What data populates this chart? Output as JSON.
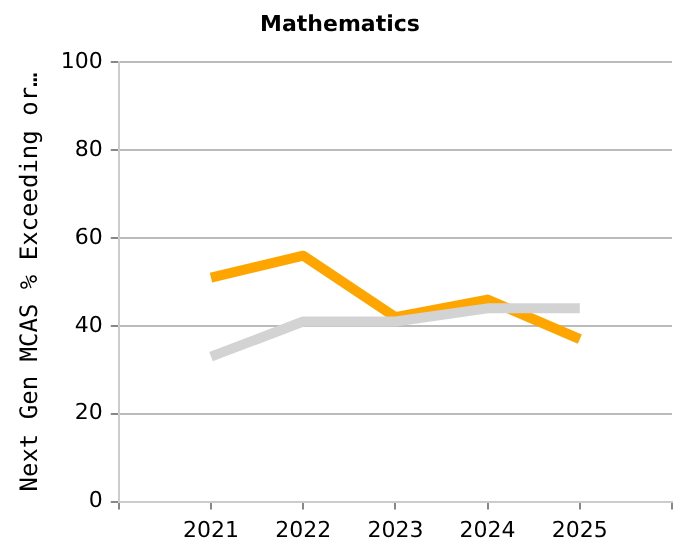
{
  "chart_data": {
    "type": "line",
    "title": "Mathematics",
    "ylabel": "Next Gen MCAS % Exceeding or…",
    "x": [
      2021,
      2022,
      2023,
      2024,
      2025
    ],
    "xlim": [
      2020,
      2026
    ],
    "xticks": [
      {
        "value": 2020,
        "label": null
      },
      2021,
      2022,
      2023,
      2024,
      2025,
      {
        "value": 2026,
        "label": null
      }
    ],
    "ylim": [
      0,
      100
    ],
    "yticks": [
      0,
      20,
      40,
      60,
      80,
      100
    ],
    "series": [
      {
        "color": "#d3d3d3",
        "values": [
          33,
          41,
          41,
          44,
          44
        ]
      },
      {
        "color": "#ffa500",
        "values": [
          51,
          56,
          42,
          46,
          37
        ]
      }
    ],
    "grid": "y",
    "legend": false,
    "marker": "none",
    "line_style": "solid"
  }
}
